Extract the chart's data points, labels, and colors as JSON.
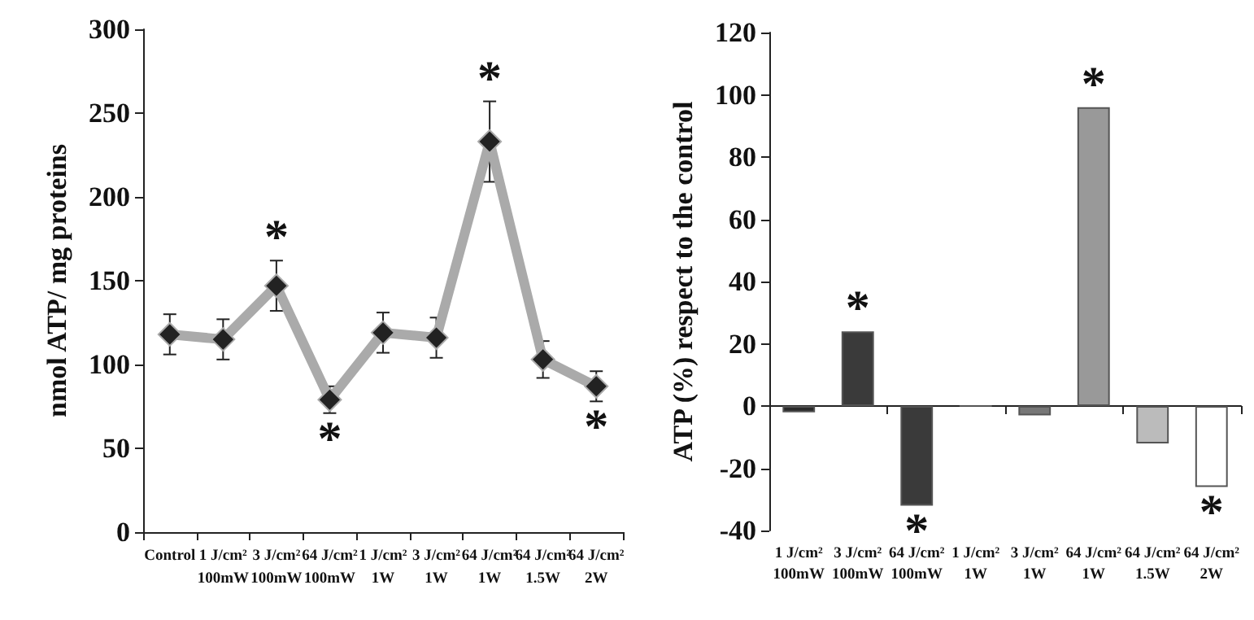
{
  "chart_data": [
    {
      "type": "line",
      "ylabel": "nmol ATP/ mg proteins",
      "categories": [
        "Control",
        "1 J/cm²\n100mW",
        "3 J/cm²\n100mW",
        "64 J/cm²\n100mW",
        "1 J/cm²\n1W",
        "3 J/cm²\n1W",
        "64 J/cm²\n1W",
        "64 J/cm²\n1.5W",
        "64 J/cm²\n2W"
      ],
      "series": [
        {
          "color": "#aaaaaa",
          "values": [
            118,
            115,
            147,
            79,
            119,
            116,
            233,
            103,
            87
          ],
          "errors": [
            12,
            12,
            15,
            8,
            12,
            12,
            24,
            11,
            9
          ]
        }
      ],
      "marker": "diamond",
      "line_style": "solid",
      "ylim": [
        0,
        300
      ],
      "yticks": [
        0,
        50,
        100,
        150,
        200,
        250,
        300
      ],
      "annotations": [
        {
          "text": "*",
          "x": "3 J/cm²\n100mW",
          "y": 147
        },
        {
          "text": "*",
          "x": "64 J/cm²\n100mW",
          "y": 79
        },
        {
          "text": "*",
          "x": "64 J/cm²\n1W",
          "y": 233
        },
        {
          "text": "*",
          "x": "64 J/cm²\n2W",
          "y": 87
        }
      ]
    },
    {
      "type": "bar",
      "ylabel": "ATP (%) respect to the control",
      "categories": [
        "1 J/cm²\n100mW",
        "3 J/cm²\n100mW",
        "64 J/cm²\n100mW",
        "1 J/cm²\n1W",
        "3 J/cm²\n1W",
        "64 J/cm²\n1W",
        "64 J/cm²\n1.5W",
        "64 J/cm²\n2W"
      ],
      "values": [
        -2,
        24,
        -32,
        0,
        -3,
        96,
        -12,
        -26
      ],
      "colors": [
        "#2a2a2a",
        "#3a3a3a",
        "#3a3a3a",
        "#555555",
        "#777777",
        "#999999",
        "#bbbbbb",
        "#ffffff"
      ],
      "ylim": [
        -40,
        120
      ],
      "yticks": [
        -40,
        -20,
        0,
        20,
        40,
        60,
        80,
        100,
        120
      ],
      "annotations": [
        {
          "text": "*",
          "x": "3 J/cm²\n100mW",
          "y": 24
        },
        {
          "text": "*",
          "x": "64 J/cm²\n100mW",
          "y": -32
        },
        {
          "text": "*",
          "x": "64 J/cm²\n1W",
          "y": 96
        },
        {
          "text": "*",
          "x": "64 J/cm²\n2W",
          "y": -26
        }
      ]
    }
  ]
}
